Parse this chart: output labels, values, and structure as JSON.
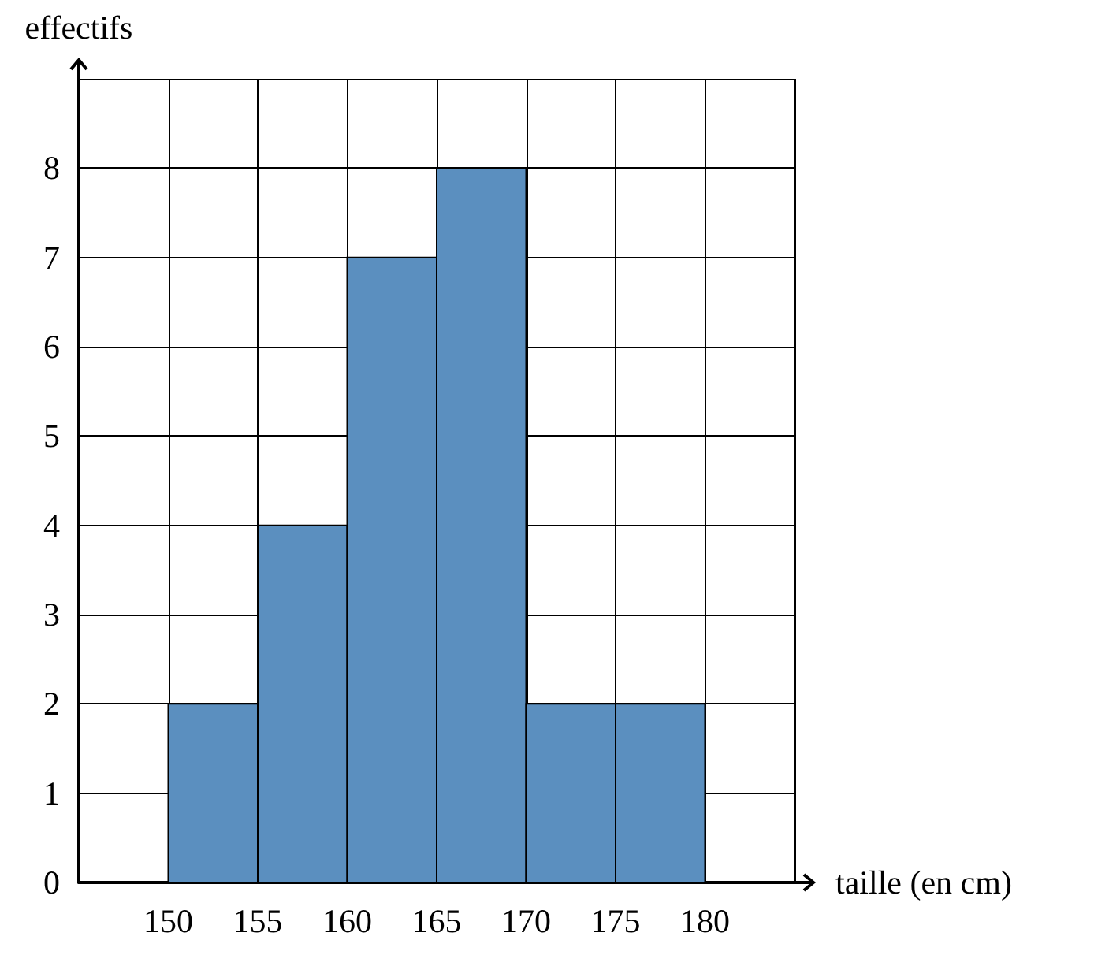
{
  "chart_data": {
    "type": "histogram",
    "xlabel": "taille (en cm)",
    "ylabel": "effectifs",
    "bins": [
      150,
      155,
      160,
      165,
      170,
      175,
      180
    ],
    "values": [
      2,
      4,
      7,
      8,
      2,
      2
    ],
    "color": "#5b8fbf",
    "xlim": [
      145,
      185
    ],
    "xticks": [
      {
        "value": 145,
        "label": null
      },
      150,
      155,
      160,
      165,
      170,
      175,
      180,
      {
        "value": 185,
        "label": null
      }
    ],
    "ylim": [
      0,
      9
    ],
    "yticks": [
      0,
      1,
      2,
      3,
      4,
      5,
      6,
      7,
      8,
      {
        "value": 9,
        "label": null
      }
    ],
    "grid": true
  }
}
